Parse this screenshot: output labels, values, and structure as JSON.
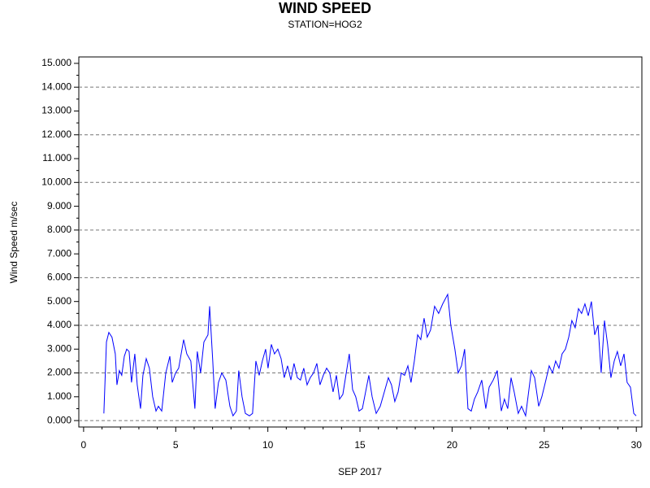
{
  "chart_data": {
    "type": "line",
    "title": "WIND SPEED",
    "subtitle": "STATION=HOG2",
    "xlabel": "SEP 2017",
    "ylabel": "Wind Speed m/sec",
    "xlim": [
      -0.26,
      30.3
    ],
    "ylim": [
      -0.27,
      15.27
    ],
    "xticks": [
      0,
      5,
      10,
      15,
      20,
      25,
      30
    ],
    "xminorticks": [
      1,
      2,
      3,
      4,
      6,
      7,
      8,
      9,
      11,
      12,
      13,
      14,
      16,
      17,
      18,
      19,
      21,
      22,
      23,
      24,
      26,
      27,
      28,
      29
    ],
    "yticks": [
      {
        "value": 0,
        "label": "0.000"
      },
      {
        "value": 1,
        "label": "1.000"
      },
      {
        "value": 2,
        "label": "2.000"
      },
      {
        "value": 3,
        "label": "3.000"
      },
      {
        "value": 4,
        "label": "4.000"
      },
      {
        "value": 5,
        "label": "5.000"
      },
      {
        "value": 6,
        "label": "6.000"
      },
      {
        "value": 7,
        "label": "7.000"
      },
      {
        "value": 8,
        "label": "8.000"
      },
      {
        "value": 9,
        "label": "9.000"
      },
      {
        "value": 10,
        "label": "10.000"
      },
      {
        "value": 11,
        "label": "11.000"
      },
      {
        "value": 12,
        "label": "12.000"
      },
      {
        "value": 13,
        "label": "13.000"
      },
      {
        "value": 14,
        "label": "14.000"
      },
      {
        "value": 15,
        "label": "15.000"
      }
    ],
    "yminorticks": [
      0.5,
      1.5,
      2.5,
      3.5,
      4.5,
      5.5,
      6.5,
      7.5,
      8.5,
      9.5,
      10.5,
      11.5,
      12.5,
      13.5,
      14.5
    ],
    "grid": true,
    "x": [
      1.1,
      1.24,
      1.37,
      1.54,
      1.72,
      1.81,
      1.94,
      2.07,
      2.21,
      2.34,
      2.47,
      2.6,
      2.78,
      2.91,
      3.09,
      3.22,
      3.4,
      3.57,
      3.75,
      3.93,
      4.06,
      4.24,
      4.46,
      4.68,
      4.81,
      4.99,
      5.16,
      5.43,
      5.6,
      5.82,
      6.04,
      6.17,
      6.35,
      6.53,
      6.75,
      6.84,
      7.01,
      7.14,
      7.32,
      7.5,
      7.72,
      7.94,
      8.11,
      8.29,
      8.42,
      8.6,
      8.78,
      9.0,
      9.17,
      9.35,
      9.53,
      9.7,
      9.88,
      10.01,
      10.19,
      10.36,
      10.54,
      10.72,
      10.89,
      11.07,
      11.25,
      11.42,
      11.6,
      11.77,
      11.95,
      12.13,
      12.3,
      12.48,
      12.66,
      12.83,
      13.01,
      13.19,
      13.36,
      13.54,
      13.72,
      13.89,
      14.07,
      14.42,
      14.6,
      14.77,
      14.95,
      15.13,
      15.48,
      15.66,
      15.88,
      16.1,
      16.32,
      16.54,
      16.71,
      16.89,
      17.07,
      17.24,
      17.42,
      17.6,
      17.77,
      17.95,
      18.13,
      18.3,
      18.48,
      18.65,
      18.83,
      19.05,
      19.27,
      19.49,
      19.76,
      19.93,
      20.15,
      20.33,
      20.51,
      20.68,
      20.86,
      21.04,
      21.21,
      21.39,
      21.61,
      21.83,
      22.01,
      22.23,
      22.45,
      22.67,
      22.84,
      23.02,
      23.2,
      23.37,
      23.59,
      23.77,
      23.99,
      24.3,
      24.48,
      24.7,
      24.87,
      25.09,
      25.27,
      25.45,
      25.62,
      25.8,
      25.97,
      26.15,
      26.33,
      26.5,
      26.68,
      26.86,
      27.03,
      27.21,
      27.39,
      27.56,
      27.74,
      27.92,
      28.09,
      28.27,
      28.44,
      28.62,
      28.8,
      28.97,
      29.15,
      29.33,
      29.5,
      29.68,
      29.86,
      29.99
    ],
    "series": [
      {
        "name": "Wind Speed",
        "color": "#0000ff",
        "values": [
          0.3,
          3.3,
          3.7,
          3.5,
          2.8,
          1.5,
          2.1,
          1.9,
          2.7,
          3.0,
          2.9,
          1.6,
          2.8,
          1.5,
          0.5,
          1.9,
          2.6,
          2.2,
          1.0,
          0.4,
          0.6,
          0.4,
          2.0,
          2.7,
          1.6,
          2.0,
          2.2,
          3.4,
          2.8,
          2.5,
          0.5,
          2.9,
          2.0,
          3.3,
          3.6,
          4.8,
          2.5,
          0.5,
          1.6,
          2.0,
          1.7,
          0.6,
          0.2,
          0.4,
          2.1,
          1.0,
          0.3,
          0.2,
          0.3,
          2.5,
          1.9,
          2.5,
          3.0,
          2.2,
          3.2,
          2.8,
          3.0,
          2.6,
          1.8,
          2.3,
          1.7,
          2.4,
          1.8,
          1.7,
          2.2,
          1.5,
          1.8,
          2.0,
          2.4,
          1.5,
          1.9,
          2.2,
          2.0,
          1.2,
          1.9,
          0.9,
          1.1,
          2.8,
          1.3,
          1.0,
          0.4,
          0.5,
          1.9,
          1.0,
          0.3,
          0.6,
          1.2,
          1.8,
          1.5,
          0.8,
          1.2,
          2.0,
          1.9,
          2.3,
          1.6,
          2.5,
          3.6,
          3.4,
          4.3,
          3.5,
          3.8,
          4.8,
          4.5,
          4.9,
          5.3,
          4.0,
          3.0,
          2.0,
          2.3,
          3.0,
          0.5,
          0.4,
          0.9,
          1.2,
          1.7,
          0.5,
          1.4,
          1.7,
          2.1,
          0.4,
          0.9,
          0.5,
          1.8,
          1.2,
          0.3,
          0.6,
          0.2,
          2.1,
          1.8,
          0.6,
          1.0,
          1.7,
          2.3,
          2.0,
          2.5,
          2.2,
          2.8,
          3.0,
          3.5,
          4.2,
          3.9,
          4.7,
          4.5,
          4.9,
          4.4,
          5.0,
          3.6,
          4.0,
          2.0,
          4.2,
          3.2,
          1.8,
          2.5,
          2.9,
          2.3,
          2.8,
          1.6,
          1.4,
          0.3,
          0.2
        ]
      }
    ]
  }
}
